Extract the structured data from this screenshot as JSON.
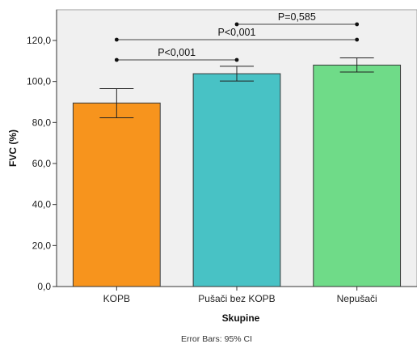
{
  "chart_data": {
    "type": "bar",
    "xlabel": "Skupine",
    "ylabel": "FVC (%)",
    "categories": [
      "KOPB",
      "Pušači bez KOPB",
      "Nepušači"
    ],
    "values": [
      89.5,
      103.8,
      108.0
    ],
    "error_bars": {
      "lower": [
        82.3,
        100.2,
        104.6
      ],
      "upper": [
        96.5,
        107.4,
        111.5
      ],
      "note": "Error Bars: 95% CI"
    },
    "colors": [
      "#F7941D",
      "#48C2C5",
      "#6FDB88"
    ],
    "ylim": [
      0,
      135
    ],
    "yticks": [
      0,
      20,
      40,
      60,
      80,
      100,
      120
    ],
    "ytick_labels": [
      "0,0",
      "20,0",
      "40,0",
      "60,0",
      "80,0",
      "100,0",
      "120,0"
    ],
    "significance": [
      {
        "from": 1,
        "to": 2,
        "label": "P=0,585"
      },
      {
        "from": 0,
        "to": 2,
        "label": "P<0,001"
      },
      {
        "from": 0,
        "to": 1,
        "label": "P<0,001"
      }
    ],
    "background": "#F0F0F0",
    "grid": false
  }
}
